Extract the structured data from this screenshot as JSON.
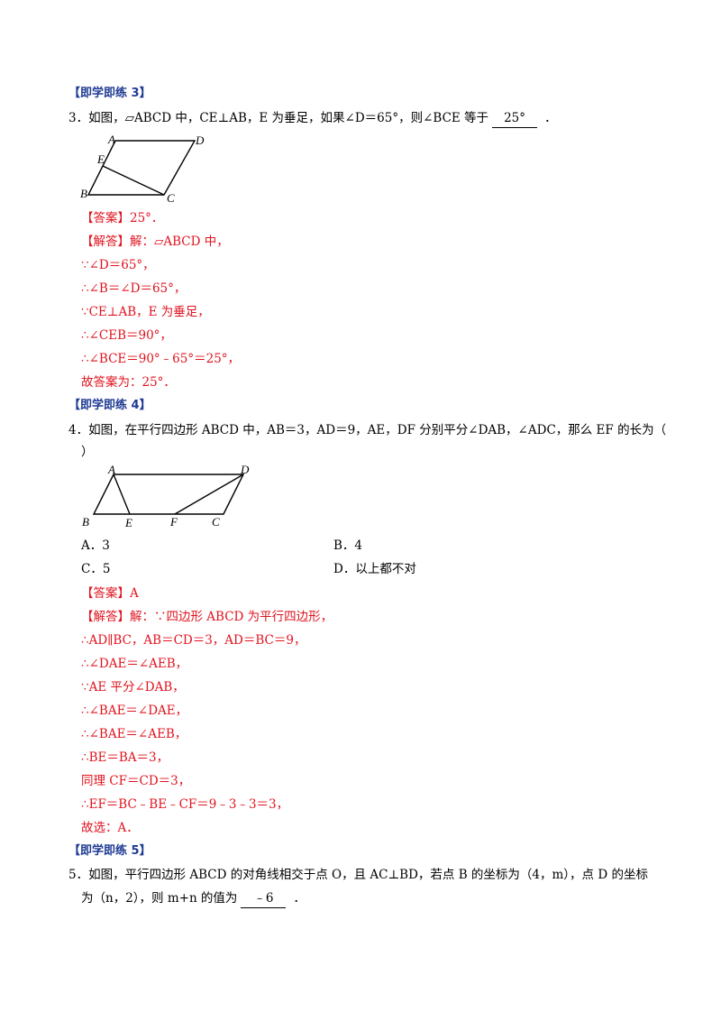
{
  "section3": {
    "header": "【即学即练 3】",
    "question": "3．如图，▱ABCD 中，CE⊥AB，E 为垂足，如果∠D＝65°，则∠BCE 等于",
    "blank": "25°",
    "end": "．",
    "figure_labels": {
      "A": "A",
      "B": "B",
      "C": "C",
      "D": "D",
      "E": "E"
    },
    "answer": "【答案】25°．",
    "solution": [
      "【解答】解：▱ABCD 中，",
      "∵∠D＝65°，",
      "∴∠B＝∠D＝65°，",
      "∵CE⊥AB，E 为垂足，",
      "∴∠CEB＝90°，",
      "∴∠BCE＝90°﹣65°＝25°，",
      "故答案为：25°．"
    ]
  },
  "section4": {
    "header": "【即学即练 4】",
    "question_line1": "4．如图，在平行四边形 ABCD 中，AB＝3，AD＝9，AE，DF 分别平分∠DAB，∠ADC，那么 EF 的长为（",
    "question_line2": "）",
    "figure_labels": {
      "A": "A",
      "B": "B",
      "C": "C",
      "D": "D",
      "E": "E",
      "F": "F"
    },
    "options": [
      "A．3",
      "B．4",
      "C．5",
      "D．以上都不对"
    ],
    "answer": "【答案】A",
    "solution": [
      "【解答】解：∵四边形 ABCD 为平行四边形，",
      "∴AD∥BC，AB＝CD＝3，AD＝BC＝9，",
      "∴∠DAE＝∠AEB，",
      "∵AE 平分∠DAB，",
      "∴∠BAE＝∠DAE，",
      "∴∠BAE＝∠AEB，",
      "∴BE＝BA＝3，",
      "同理 CF＝CD＝3，",
      "∴EF＝BC﹣BE﹣CF＝9﹣3﹣3＝3，",
      "故选：A．"
    ]
  },
  "section5": {
    "header": "【即学即练 5】",
    "question_line1": "5．如图，平行四边形 ABCD 的对角线相交于点 O，且 AC⊥BD，若点 B 的坐标为（4，m），点 D 的坐标",
    "question_line2": "为（n，2），则 m+n 的值为",
    "blank": "﹣6",
    "end": "．"
  }
}
